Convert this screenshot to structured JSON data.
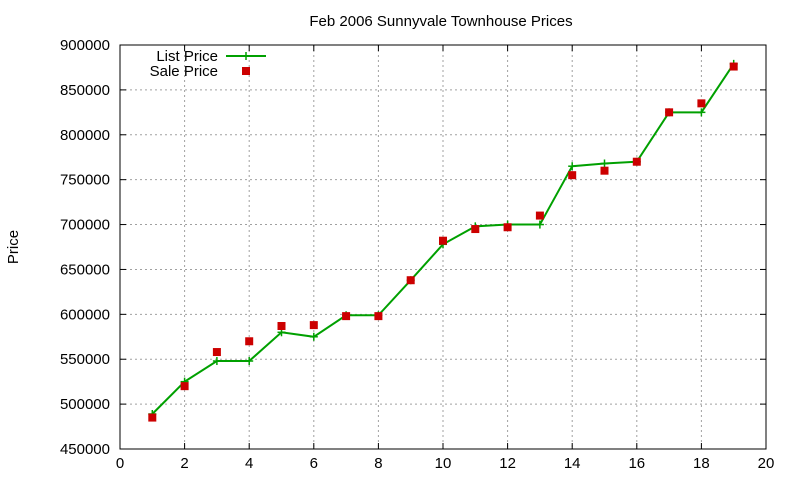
{
  "chart_data": {
    "type": "line",
    "title": "Feb 2006 Sunnyvale Townhouse Prices",
    "xlabel": "",
    "ylabel": "Price",
    "xlim": [
      0,
      20
    ],
    "ylim": [
      450000,
      900000
    ],
    "xticks": [
      0,
      2,
      4,
      6,
      8,
      10,
      12,
      14,
      16,
      18,
      20
    ],
    "yticks": [
      450000,
      500000,
      550000,
      600000,
      650000,
      700000,
      750000,
      800000,
      850000,
      900000
    ],
    "grid": true,
    "legend_position": "top-left",
    "series": [
      {
        "name": "List Price",
        "style": "linespoints",
        "color": "#00a000",
        "marker": "plus",
        "x": [
          1,
          2,
          3,
          4,
          5,
          6,
          7,
          8,
          9,
          10,
          11,
          12,
          13,
          14,
          15,
          16,
          17,
          18,
          19
        ],
        "values": [
          489000,
          525000,
          548000,
          548000,
          580000,
          575000,
          599000,
          599000,
          638000,
          678000,
          698000,
          700000,
          700000,
          765000,
          768000,
          770000,
          825000,
          825000,
          879000
        ]
      },
      {
        "name": "Sale Price",
        "style": "points",
        "color": "#cc0000",
        "marker": "square",
        "x": [
          1,
          2,
          3,
          4,
          5,
          6,
          7,
          8,
          9,
          10,
          11,
          12,
          13,
          14,
          15,
          16,
          17,
          18,
          19
        ],
        "values": [
          485000,
          520000,
          558000,
          570000,
          587000,
          588000,
          598000,
          598000,
          638000,
          682000,
          695000,
          697000,
          710000,
          755000,
          760000,
          770000,
          825000,
          835000,
          876000
        ]
      }
    ]
  }
}
